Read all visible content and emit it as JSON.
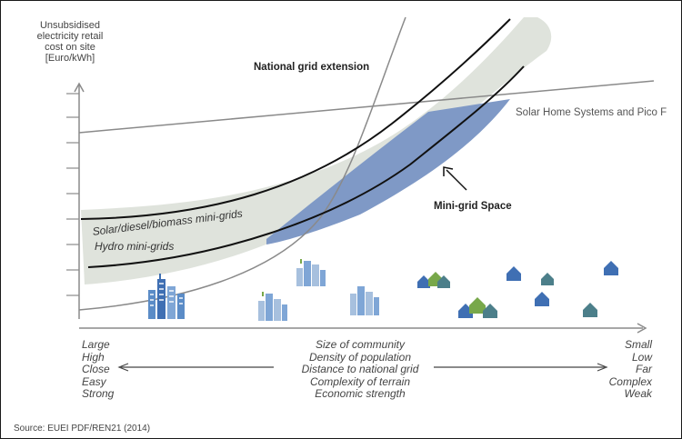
{
  "y_axis_label": [
    "Unsubsidised",
    "electricity retail",
    "cost on site",
    "[Euro/kWh]"
  ],
  "labels": {
    "national_grid": "National grid extension",
    "solar_home": "Solar Home Systems and Pico F",
    "mini_grid_space": "Mini-grid Space",
    "solar_diesel": "Solar/diesel/biomass mini-grids",
    "hydro": "Hydro mini-grids"
  },
  "x_axis": {
    "left": [
      "Large",
      "High",
      "Close",
      "Easy",
      "Strong"
    ],
    "middle": [
      "Size of community",
      "Density of population",
      "Distance to national grid",
      "Complexity of terrain",
      "Economic strength"
    ],
    "right": [
      "Small",
      "Low",
      "Far",
      "Complex",
      "Weak"
    ]
  },
  "source": "Source: EUEI PDF/REN21 (2014)",
  "colors": {
    "band": "#dfe3dc",
    "blue_area": "#7f99c6",
    "curve": "#111111",
    "grey_line": "#8a8a8a",
    "house_blue": "#3f6fb3",
    "house_teal": "#4c7f8a",
    "house_green": "#78a84a"
  },
  "icons": [
    "city-cluster-icon",
    "house-icon"
  ]
}
